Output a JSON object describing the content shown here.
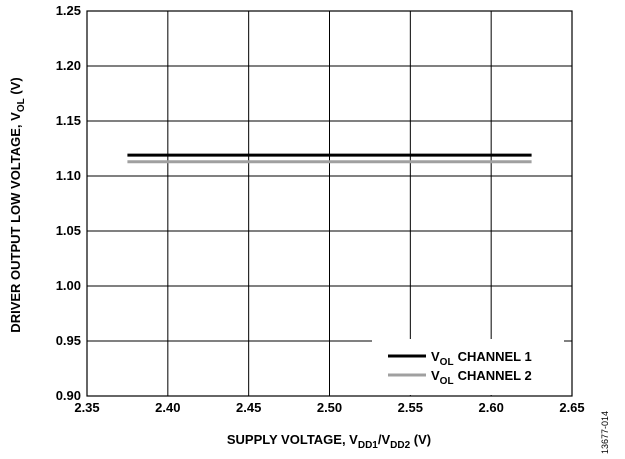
{
  "chart_data": {
    "type": "line",
    "xlabel": {
      "main": "SUPPLY VOLTAGE, V",
      "sub1": "DD1",
      "mid": "/V",
      "sub2": "DD2",
      "tail": " (V)"
    },
    "ylabel": {
      "main": "DRIVER OUTPUT LOW VOLTAGE, V",
      "sub": "OL",
      "tail": " (V)"
    },
    "xlim": [
      2.35,
      2.65
    ],
    "ylim": [
      0.9,
      1.25
    ],
    "x_ticks": [
      "2.35",
      "2.40",
      "2.45",
      "2.50",
      "2.55",
      "2.60",
      "2.65"
    ],
    "y_ticks": [
      "0.90",
      "0.95",
      "1.00",
      "1.05",
      "1.10",
      "1.15",
      "1.20",
      "1.25"
    ],
    "grid": true,
    "legend_position": "bottom-right",
    "series": [
      {
        "name": "CHANNEL 1",
        "name_prefix": "V",
        "name_sub": "OL",
        "color": "#000000",
        "x": [
          2.375,
          2.625
        ],
        "y": [
          1.119,
          1.119
        ]
      },
      {
        "name": "CHANNEL 2",
        "name_prefix": "V",
        "name_sub": "OL",
        "color": "#a0a0a0",
        "x": [
          2.375,
          2.625
        ],
        "y": [
          1.113,
          1.113
        ]
      }
    ]
  },
  "figure_id": "13677-014"
}
